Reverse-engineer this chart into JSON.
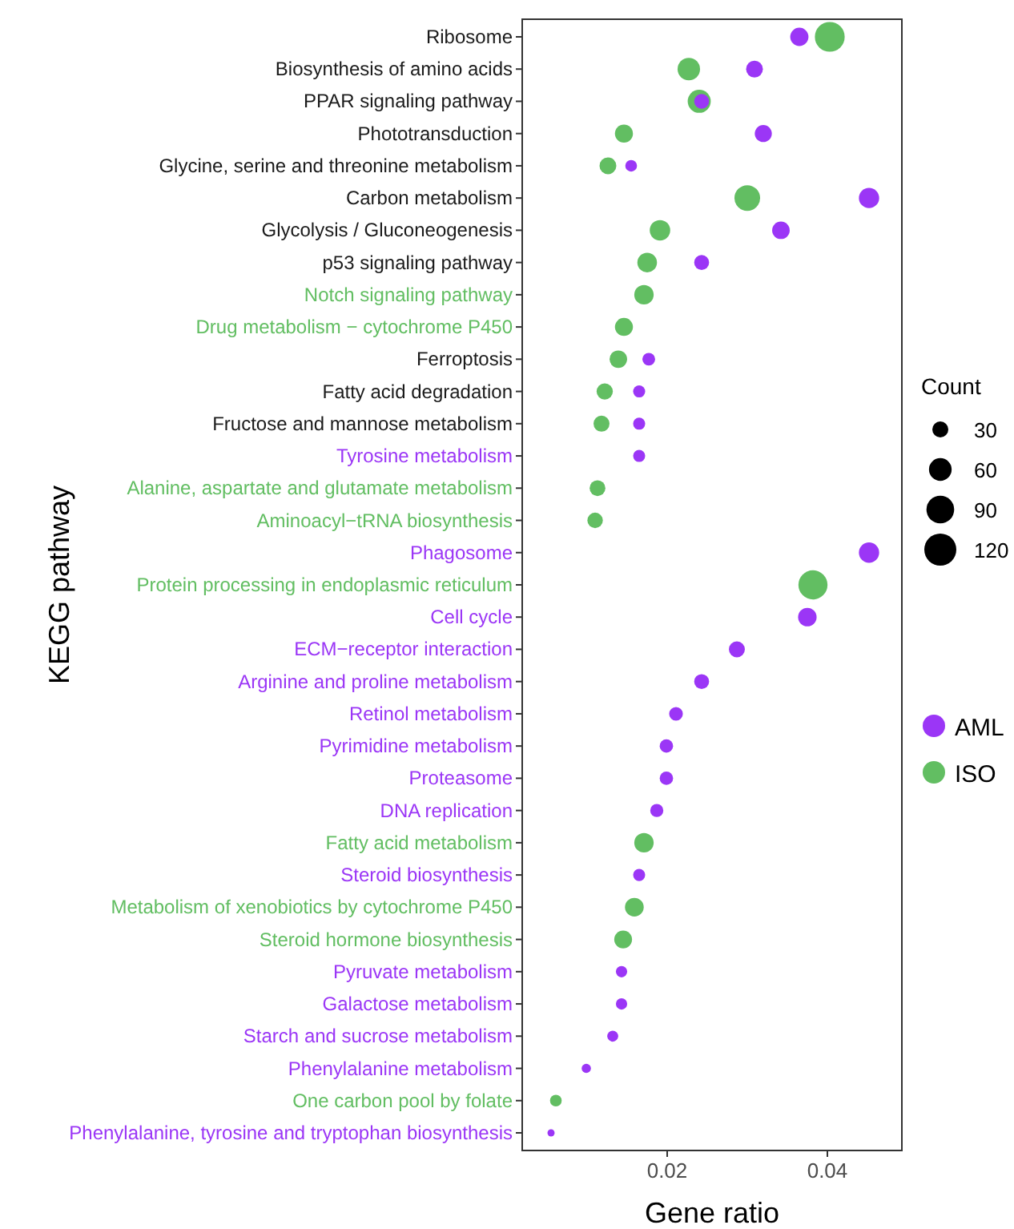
{
  "chart_data": {
    "type": "bubble",
    "xlabel": "Gene ratio",
    "ylabel": "KEGG pathway",
    "legend_title": "Count",
    "orientation": "horizontal",
    "grid": false,
    "legend": "right",
    "marker": "circle",
    "categories": [
      "Ribosome",
      "Biosynthesis of amino acids",
      "PPAR signaling pathway",
      "Phototransduction",
      "Glycine, serine and threonine metabolism",
      "Carbon metabolism",
      "Glycolysis / Gluconeogenesis",
      "p53 signaling pathway",
      "Notch signaling pathway",
      "Drug metabolism − cytochrome P450",
      "Ferroptosis",
      "Fatty acid degradation",
      "Fructose and mannose metabolism",
      "Tyrosine metabolism",
      "Alanine, aspartate and glutamate metabolism",
      "Aminoacyl−tRNA biosynthesis",
      "Phagosome",
      "Protein processing in endoplasmic reticulum",
      "Cell cycle",
      "ECM−receptor interaction",
      "Arginine and proline metabolism",
      "Retinol metabolism",
      "Pyrimidine metabolism",
      "Proteasome",
      "DNA replication",
      "Fatty acid metabolism",
      "Steroid biosynthesis",
      "Metabolism of xenobiotics by cytochrome P450",
      "Steroid hormone biosynthesis",
      "Pyruvate metabolism",
      "Galactose metabolism",
      "Starch and sucrose metabolism",
      "Phenylalanine metabolism",
      "One carbon pool by folate",
      "Phenylalanine, tyrosine and tryptophan biosynthesis"
    ],
    "xlim": [
      0.0019,
      0.0493
    ],
    "xticks": [
      0.02,
      0.04
    ],
    "size_legend": [
      30,
      60,
      90,
      120
    ],
    "series": [
      {
        "name": "AML",
        "color": "#9b36f6",
        "values": [
          0.0365,
          0.0309,
          0.0243,
          0.032,
          0.0155,
          0.0452,
          0.0342,
          0.0243,
          null,
          null,
          0.0177,
          0.0165,
          0.0165,
          0.0165,
          null,
          null,
          0.0452,
          null,
          0.0375,
          0.0287,
          0.0243,
          0.0211,
          0.0199,
          0.0199,
          0.0187,
          null,
          0.0165,
          null,
          null,
          0.0143,
          0.0143,
          0.0132,
          0.0099,
          null,
          0.0055
        ],
        "sizes": [
          39,
          33,
          26,
          34,
          16,
          48,
          36,
          26,
          null,
          null,
          19,
          17,
          17,
          17,
          null,
          null,
          48,
          null,
          40,
          30,
          26,
          22,
          21,
          21,
          20,
          null,
          17,
          null,
          null,
          15,
          15,
          14,
          10,
          null,
          6
        ]
      },
      {
        "name": "ISO",
        "color": "#62be62",
        "values": [
          0.0403,
          0.0227,
          0.024,
          0.0146,
          0.0126,
          0.03,
          0.0191,
          0.0175,
          0.0171,
          0.0146,
          0.0139,
          0.0122,
          0.0118,
          null,
          0.0113,
          0.011,
          null,
          0.0382,
          null,
          null,
          null,
          null,
          null,
          null,
          null,
          0.0171,
          null,
          0.0159,
          0.0145,
          null,
          null,
          null,
          null,
          0.0061,
          null
        ],
        "sizes": [
          104,
          59,
          62,
          38,
          33,
          77,
          49,
          45,
          44,
          38,
          36,
          31,
          30,
          null,
          29,
          28,
          null,
          99,
          null,
          null,
          null,
          null,
          null,
          null,
          null,
          44,
          null,
          41,
          37,
          null,
          null,
          null,
          null,
          16,
          null
        ]
      }
    ]
  }
}
